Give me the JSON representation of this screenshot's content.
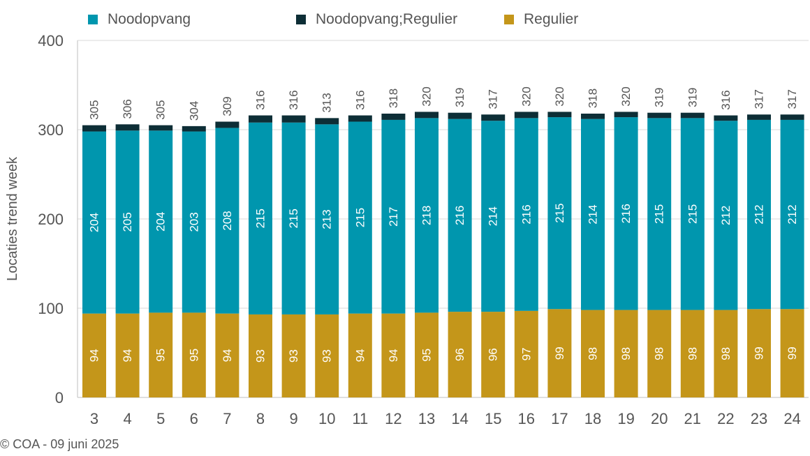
{
  "footer": "© COA - 09 juni 2025",
  "colors": {
    "noodopvang": "#0096AE",
    "noodopvang_regulier": "#0D2E36",
    "regulier": "#C4961A",
    "axis_text": "#555555",
    "grid": "#d9d9d9"
  },
  "chart_data": {
    "type": "bar",
    "stacked": true,
    "ylabel": "Locaties trend week",
    "xlabel": "",
    "ylim": [
      0,
      400
    ],
    "yticks": [
      0,
      100,
      200,
      300,
      400
    ],
    "grid": true,
    "legend_position": "top",
    "categories": [
      "3",
      "4",
      "5",
      "6",
      "7",
      "8",
      "9",
      "10",
      "11",
      "12",
      "13",
      "14",
      "15",
      "16",
      "17",
      "18",
      "19",
      "20",
      "21",
      "22",
      "23",
      "24"
    ],
    "series": [
      {
        "name": "Regulier",
        "color": "#C4961A",
        "values": [
          94,
          94,
          95,
          95,
          94,
          93,
          93,
          93,
          94,
          94,
          95,
          96,
          96,
          97,
          99,
          98,
          98,
          98,
          98,
          98,
          99,
          99
        ]
      },
      {
        "name": "Noodopvang",
        "color": "#0096AE",
        "values": [
          204,
          205,
          204,
          203,
          208,
          215,
          215,
          213,
          215,
          217,
          218,
          216,
          214,
          216,
          215,
          214,
          216,
          215,
          215,
          212,
          212,
          212
        ]
      },
      {
        "name": "Noodopvang;Regulier",
        "color": "#0D2E36",
        "values": [
          7,
          7,
          6,
          6,
          7,
          8,
          8,
          7,
          7,
          7,
          7,
          7,
          7,
          7,
          6,
          6,
          6,
          6,
          6,
          6,
          6,
          6
        ]
      }
    ],
    "totals": [
      305,
      306,
      305,
      304,
      309,
      316,
      316,
      313,
      316,
      318,
      320,
      319,
      317,
      320,
      320,
      318,
      320,
      319,
      319,
      316,
      317,
      317
    ],
    "legend": [
      "Noodopvang",
      "Noodopvang;Regulier",
      "Regulier"
    ]
  }
}
